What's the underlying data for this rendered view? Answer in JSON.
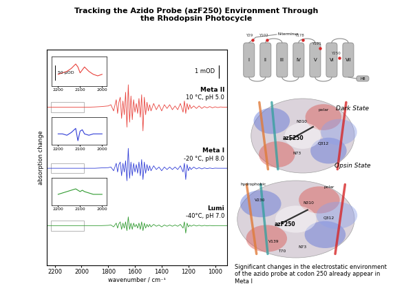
{
  "title": "Tracking the Azido Probe (azF250) Environment Through\nthe Rhodopsin Photocycle",
  "chart_data": {
    "type": "line",
    "x_label": "wavenumber / cm⁻¹",
    "y_label": "absorption change",
    "xlim": [
      2260,
      910
    ],
    "xticks": [
      2200,
      2000,
      1800,
      1600,
      1400,
      1200,
      1000
    ],
    "ylim": [
      -3.2,
      14.1
    ],
    "yticks": [],
    "tick_labels": "x",
    "scale_bar": {
      "value": 1,
      "label": "1 mOD"
    },
    "x": [
      2300,
      2250,
      2200,
      2150,
      2100,
      2050,
      2000,
      1950,
      1900,
      1850,
      1800,
      1780,
      1760,
      1740,
      1730,
      1720,
      1710,
      1700,
      1690,
      1680,
      1670,
      1660,
      1650,
      1640,
      1630,
      1620,
      1610,
      1600,
      1590,
      1580,
      1570,
      1560,
      1550,
      1540,
      1530,
      1520,
      1510,
      1500,
      1490,
      1480,
      1460,
      1440,
      1420,
      1400,
      1380,
      1360,
      1340,
      1320,
      1300,
      1280,
      1260,
      1240,
      1230,
      1220,
      1210,
      1200,
      1190,
      1180,
      1160,
      1140,
      1120,
      1100,
      1080,
      1060,
      1040,
      1020,
      1000,
      980,
      960,
      940,
      920,
      900
    ],
    "series": [
      {
        "name": "Meta II",
        "condition": "10 °C, pH 5.0",
        "color": "#e8403a",
        "offset": 9.5,
        "values": [
          0,
          0,
          0,
          0,
          0,
          0,
          0,
          0,
          0.02,
          0.05,
          0.1,
          0.2,
          -0.3,
          0.6,
          -0.5,
          0.4,
          0.8,
          -0.9,
          0.5,
          -0.6,
          1.2,
          -1.6,
          1.8,
          -1.2,
          0.9,
          -1.0,
          0.6,
          -0.4,
          0.3,
          -0.5,
          0.7,
          -0.8,
          1.0,
          -1.9,
          0.8,
          -0.6,
          0.4,
          -0.3,
          0.2,
          -0.3,
          0.3,
          -0.2,
          0.2,
          -0.3,
          0.2,
          -0.1,
          0.2,
          -0.2,
          0.1,
          -0.2,
          0.3,
          -0.4,
          0.5,
          -0.5,
          0.3,
          -0.2,
          0.2,
          -0.1,
          0.1,
          -0.1,
          0.1,
          -0.1,
          0.05,
          -0.05,
          0.05,
          -0.05,
          0.03,
          -0.03,
          0.02,
          0,
          0,
          0
        ],
        "inset": {
          "x": [
            2200,
            2180,
            2160,
            2140,
            2120,
            2110,
            2100,
            2090,
            2080,
            2060,
            2040,
            2020,
            2000
          ],
          "values": [
            0,
            5,
            10,
            20,
            35,
            25,
            5,
            15,
            25,
            10,
            0,
            -5,
            0
          ],
          "scale_bar": {
            "value": 50,
            "label": "50 µOD"
          }
        }
      },
      {
        "name": "Meta I",
        "condition": "-20 °C, pH 8.0",
        "color": "#2e3bd6",
        "offset": 4.6,
        "values": [
          0,
          0,
          0,
          0,
          0,
          0,
          0,
          0,
          0,
          0.03,
          0.05,
          0.1,
          -0.2,
          0.4,
          -0.3,
          0.3,
          0.5,
          -0.6,
          0.4,
          -0.3,
          0.6,
          -1.0,
          1.6,
          -0.8,
          0.5,
          -0.6,
          0.4,
          -0.3,
          0.3,
          -0.4,
          0.5,
          -0.6,
          0.7,
          -0.9,
          0.5,
          -0.4,
          0.3,
          -0.2,
          0.2,
          -0.2,
          0.2,
          -0.1,
          0.1,
          -0.2,
          0.1,
          -0.1,
          0.1,
          -0.1,
          0.1,
          -0.1,
          0.2,
          -0.3,
          0.4,
          -0.9,
          0.3,
          -0.2,
          0.1,
          -0.1,
          0.1,
          -0.05,
          0.05,
          -0.05,
          0.03,
          -0.03,
          0.02,
          -0.02,
          0.01,
          0,
          0,
          0,
          0,
          0
        ],
        "inset": {
          "x": [
            2200,
            2180,
            2160,
            2140,
            2120,
            2110,
            2100,
            2090,
            2080,
            2060,
            2040,
            2020,
            2000
          ],
          "values": [
            0,
            0,
            -5,
            5,
            20,
            -25,
            10,
            15,
            0,
            -5,
            0,
            0,
            0
          ]
        }
      },
      {
        "name": "Lumi",
        "condition": "-40°C, pH 7.0",
        "color": "#2f9a2f",
        "offset": 0,
        "values": [
          0,
          0,
          0,
          0,
          0,
          0,
          0,
          0,
          0,
          0,
          0.02,
          0.05,
          -0.1,
          0.2,
          -0.2,
          0.15,
          0.3,
          -0.3,
          0.2,
          -0.2,
          0.3,
          -0.4,
          0.7,
          -0.3,
          0.2,
          -0.3,
          0.2,
          -0.1,
          0.1,
          -0.2,
          0.2,
          -0.3,
          0.3,
          -0.4,
          0.2,
          -0.2,
          0.1,
          -0.1,
          0.1,
          -0.1,
          0.1,
          -0.05,
          0.05,
          -0.1,
          0.05,
          -0.05,
          0.05,
          -0.05,
          0.05,
          -0.05,
          0.1,
          -0.2,
          0.3,
          -0.6,
          0.2,
          -0.1,
          0.05,
          -0.05,
          0.05,
          -0.03,
          0.03,
          -0.03,
          0.02,
          -0.02,
          0.01,
          -0.01,
          0,
          0,
          0,
          0,
          0,
          0
        ],
        "inset": {
          "x": [
            2200,
            2180,
            2160,
            2140,
            2120,
            2110,
            2100,
            2090,
            2080,
            2060,
            2040,
            2020,
            2000
          ],
          "values": [
            0,
            5,
            10,
            15,
            20,
            15,
            10,
            15,
            10,
            5,
            0,
            0,
            0
          ]
        }
      }
    ],
    "inset_xlim": [
      2230,
      1980
    ],
    "inset_xticks": [
      2200,
      2100,
      2000
    ],
    "inset_ylim": [
      -40,
      60
    ]
  },
  "diagram": {
    "topology": {
      "terminus": "N-terminus",
      "helices": [
        "I",
        "II",
        "III",
        "IV",
        "V",
        "VI",
        "VII"
      ],
      "h8": "H8",
      "residues": [
        "Y29",
        "Y102",
        "Y178",
        "Y191",
        "Y250"
      ]
    },
    "panels": [
      {
        "title": "Dark State",
        "probe": "azF250",
        "labels": [
          "polar",
          "N310",
          "Q312",
          "N73"
        ]
      },
      {
        "title": "Opsin State",
        "probe": "azF250",
        "labels": [
          "hydrophobic",
          "polar",
          "V230",
          "N310",
          "Q312",
          "V139",
          "T70",
          "N73"
        ]
      }
    ]
  },
  "caption": "Significant changes in the electrostatic environment of the azido probe at codon 250 already appear in Meta I"
}
